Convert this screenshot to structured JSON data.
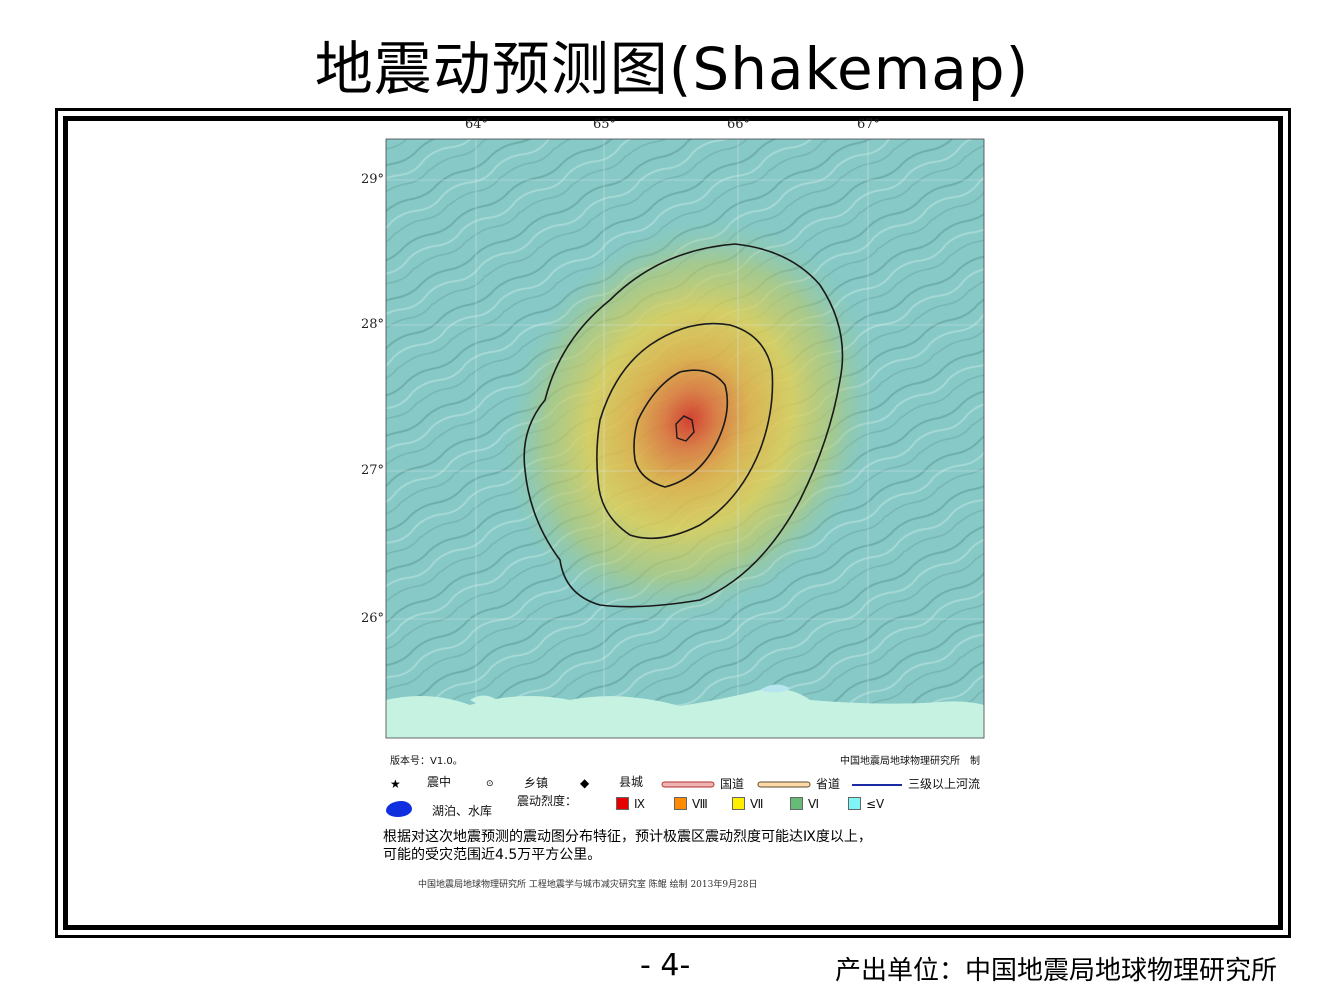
{
  "title": "地震动预测图(Shakemap)",
  "map": {
    "lon_ticks": [
      "64°",
      "65°",
      "66°",
      "67°"
    ],
    "lat_ticks": [
      "29°",
      "28°",
      "27°",
      "26°"
    ],
    "version": "版本号：V1.0。",
    "institute": "中国地震局地球物理研究所　制",
    "epicenter_label": "震中",
    "intensity_max": "IX"
  },
  "legend": {
    "epicenter": "震中",
    "town": "乡镇",
    "county": "县城",
    "national_road": "国道",
    "provincial_road": "省道",
    "river": "三级以上河流",
    "lake": "湖泊、水库",
    "intensity_title": "震动烈度：",
    "intensity_levels": [
      {
        "label": "Ⅸ",
        "color": "#e60000"
      },
      {
        "label": "Ⅷ",
        "color": "#ff8c00"
      },
      {
        "label": "Ⅶ",
        "color": "#ffee00"
      },
      {
        "label": "Ⅵ",
        "color": "#66bb77"
      },
      {
        "label": "≤Ⅴ",
        "color": "#7ff5f5"
      }
    ]
  },
  "description": {
    "line1": "根据对这次地震预测的震动图分布特征，预计极震区震动烈度可能达Ⅸ度以上，",
    "line2": "可能的受灾范围近4.5万平方公里。"
  },
  "credit": "中国地震局地球物理研究所 工程地震学与城市减灾研究室 陈鲲 绘制 2013年9月28日",
  "footer": {
    "page": "- 4-",
    "producer": "产出单位：中国地震局地球物理研究所"
  },
  "colors": {
    "terrain": "#86c9c6",
    "coast": "#c6f2e2",
    "contour": "#1a1a1a"
  }
}
